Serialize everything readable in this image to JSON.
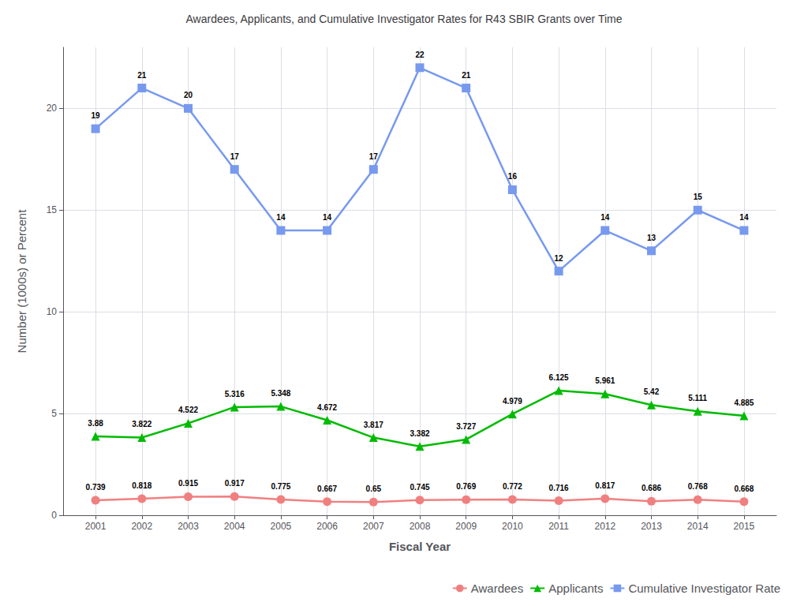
{
  "chart_data": {
    "type": "line",
    "title": "Awardees, Applicants, and Cumulative Investigator Rates for R43 SBIR Grants over Time",
    "x_label": "Fiscal Year",
    "y_label": "Number (1000s) or Percent",
    "x": [
      2001,
      2002,
      2003,
      2004,
      2005,
      2006,
      2007,
      2008,
      2009,
      2010,
      2011,
      2012,
      2013,
      2014,
      2015
    ],
    "series": [
      {
        "name": "Awardees",
        "color": "#F08080",
        "marker": "circle",
        "values": [
          0.739,
          0.818,
          0.915,
          0.917,
          0.775,
          0.667,
          0.65,
          0.745,
          0.769,
          0.772,
          0.716,
          0.817,
          0.686,
          0.768,
          0.668
        ]
      },
      {
        "name": "Applicants",
        "color": "#00BB00",
        "marker": "triangle",
        "values": [
          3.88,
          3.822,
          4.522,
          5.316,
          5.348,
          4.672,
          3.817,
          3.382,
          3.727,
          4.979,
          6.125,
          5.961,
          5.42,
          5.111,
          4.885
        ]
      },
      {
        "name": "Cumulative Investigator Rate",
        "color": "#7799EE",
        "marker": "square",
        "values": [
          19,
          21,
          20,
          17,
          14,
          14,
          17,
          22,
          21,
          16,
          12,
          14,
          13,
          15,
          14
        ]
      }
    ],
    "xlim": [
      2000.3,
      2015.7
    ],
    "xticks": [
      2001,
      2002,
      2003,
      2004,
      2005,
      2006,
      2007,
      2008,
      2009,
      2010,
      2011,
      2012,
      2013,
      2014,
      2015
    ],
    "ylim": [
      0,
      23
    ],
    "yticks": [
      0,
      5,
      10,
      15,
      20
    ],
    "grid": true,
    "legend": "lower right",
    "data_labels": true
  }
}
